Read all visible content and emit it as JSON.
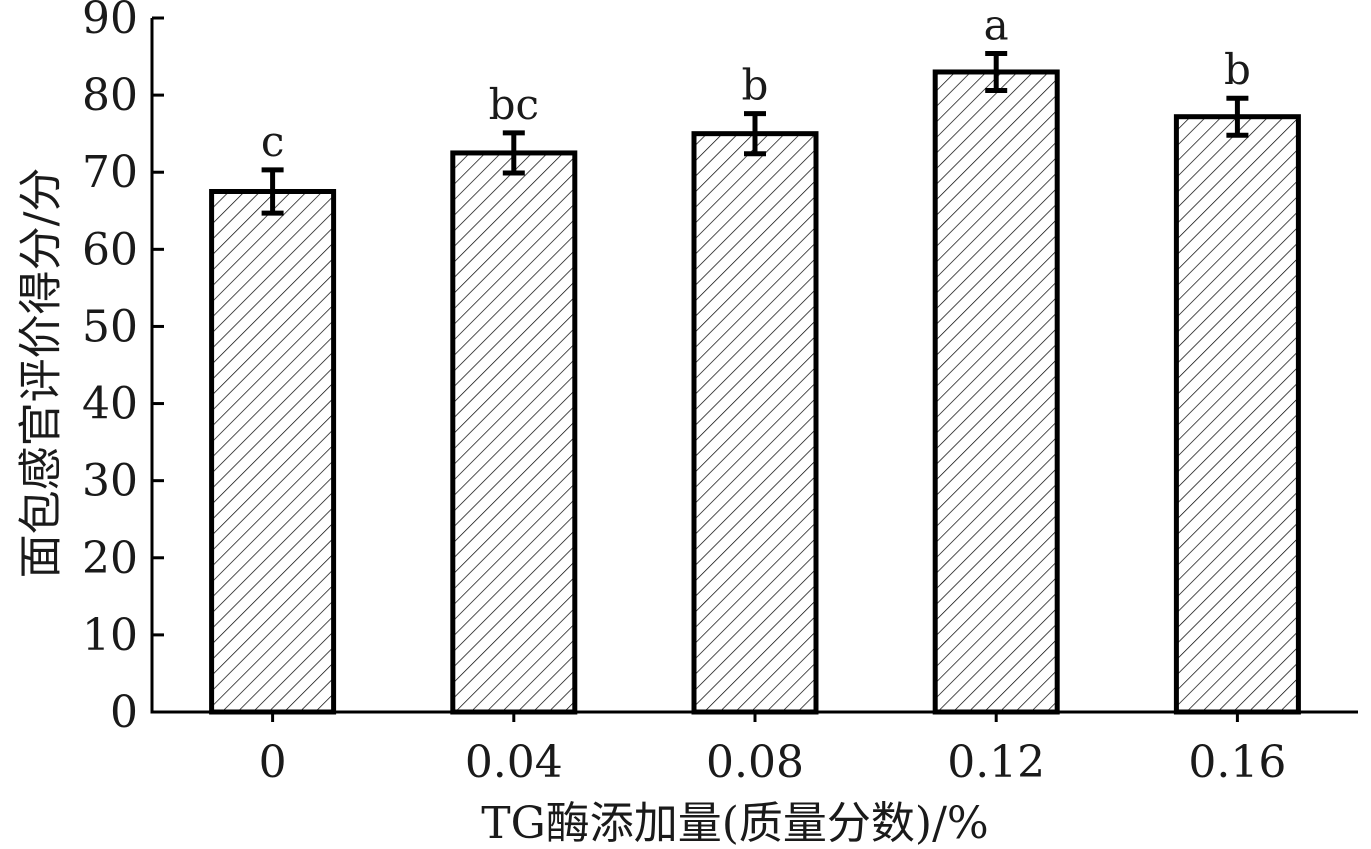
{
  "chart_data": {
    "type": "bar",
    "xlabel": "TG酶添加量(质量分数)/%",
    "ylabel": "面包感官评价得分/分",
    "categories": [
      "0",
      "0.04",
      "0.08",
      "0.12",
      "0.16"
    ],
    "values": [
      67.5,
      72.5,
      75,
      83,
      77.2
    ],
    "errors": [
      2.8,
      2.6,
      2.6,
      2.4,
      2.4
    ],
    "significance": [
      "c",
      "bc",
      "b",
      "a",
      "b"
    ],
    "ylim": [
      0,
      90
    ],
    "yticks": [
      0,
      10,
      20,
      30,
      40,
      50,
      60,
      70,
      80,
      90
    ],
    "grid": false,
    "bar_fill": "hatched",
    "colors": {
      "line": "#000000",
      "hatch": "#000000",
      "background": "#ffffff"
    }
  }
}
